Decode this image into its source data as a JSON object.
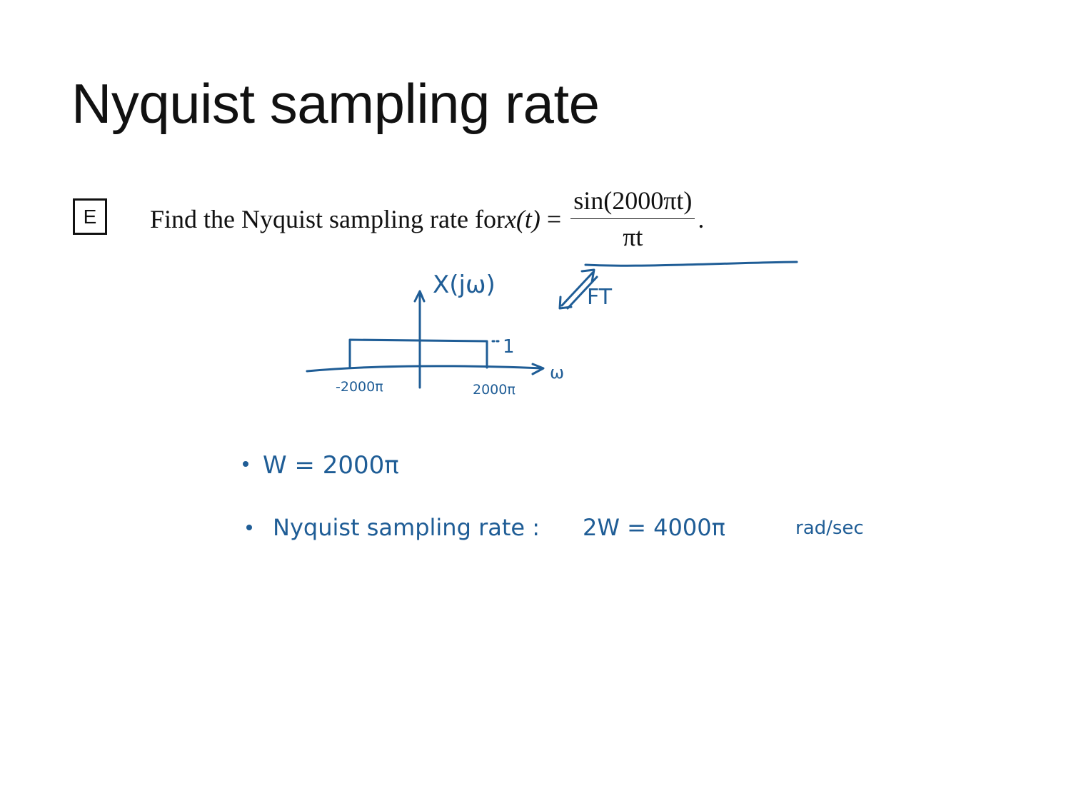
{
  "slide": {
    "title": "Nyquist sampling rate",
    "problem_label": "E",
    "problem": {
      "prefix": "Find the Nyquist sampling rate for ",
      "lhs": "x(t)",
      "equals": " = ",
      "numerator": "sin(2000πt)",
      "denominator": "πt",
      "suffix": "."
    }
  },
  "handwriting": {
    "transform_label": "FT",
    "spectrum_label": "X(jω)",
    "axis_label": "ω",
    "amplitude_label": "1",
    "left_cutoff": "-2000π",
    "right_cutoff": "2000π",
    "bullet1": "W = 2000π",
    "bullet2_label": "Nyquist sampling rate :",
    "bullet2_value": "2W = 4000π",
    "bullet2_unit": "rad/sec",
    "ink_color": "#1f5d96"
  }
}
